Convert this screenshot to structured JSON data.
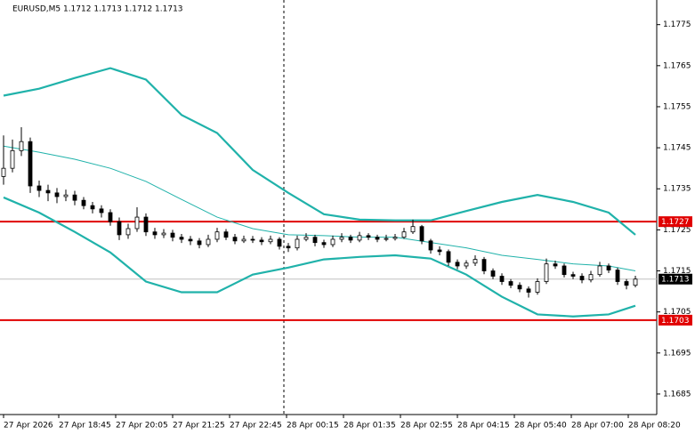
{
  "chart_data": {
    "type": "candlestick",
    "title": "EURUSD,M5  1.1712 1.1713 1.1712 1.1713",
    "xlim": [
      -0.4,
      73.4
    ],
    "ylim": [
      1.168,
      1.1781
    ],
    "yticks": [
      1.1685,
      1.1695,
      1.1705,
      1.1715,
      1.1725,
      1.1735,
      1.1745,
      1.1755,
      1.1765,
      1.1775
    ],
    "xticks": [
      {
        "value": 0,
        "label": "27 Apr 2026"
      },
      {
        "value": 6.2,
        "label": "27 Apr 18:45"
      },
      {
        "value": 12.6,
        "label": "27 Apr 20:05"
      },
      {
        "value": 19,
        "label": "27 Apr 21:25"
      },
      {
        "value": 25.4,
        "label": "27 Apr 22:45"
      },
      {
        "value": 31.8,
        "label": "28 Apr 00:15"
      },
      {
        "value": 38.2,
        "label": "28 Apr 01:35"
      },
      {
        "value": 44.6,
        "label": "28 Apr 02:55"
      },
      {
        "value": 51,
        "label": "28 Apr 04:15"
      },
      {
        "value": 57.4,
        "label": "28 Apr 05:40"
      },
      {
        "value": 63.8,
        "label": "28 Apr 07:00"
      },
      {
        "value": 70.2,
        "label": "28 Apr 08:20"
      }
    ],
    "candles": [
      [
        1.1738,
        1.1748,
        1.1736,
        1.174
      ],
      [
        1.174,
        1.1747,
        1.1739,
        1.17443
      ],
      [
        1.17443,
        1.175,
        1.1743,
        1.17465
      ],
      [
        1.17465,
        1.17475,
        1.1734,
        1.17357
      ],
      [
        1.17357,
        1.1737,
        1.1733,
        1.17346
      ],
      [
        1.17346,
        1.1736,
        1.1732,
        1.1734
      ],
      [
        1.1734,
        1.17352,
        1.17315,
        1.17331
      ],
      [
        1.17331,
        1.17348,
        1.1732,
        1.17335
      ],
      [
        1.17335,
        1.17345,
        1.1731,
        1.17322
      ],
      [
        1.17322,
        1.1733,
        1.173,
        1.17309
      ],
      [
        1.17309,
        1.17318,
        1.1729,
        1.17301
      ],
      [
        1.17301,
        1.1731,
        1.1728,
        1.17292
      ],
      [
        1.17292,
        1.173,
        1.1726,
        1.1727
      ],
      [
        1.1727,
        1.1728,
        1.17225,
        1.17238
      ],
      [
        1.17238,
        1.17265,
        1.17228,
        1.17253
      ],
      [
        1.17253,
        1.17305,
        1.17245,
        1.17281
      ],
      [
        1.17281,
        1.1729,
        1.17235,
        1.17245
      ],
      [
        1.17245,
        1.17255,
        1.17228,
        1.17238
      ],
      [
        1.17238,
        1.17252,
        1.1723,
        1.17242
      ],
      [
        1.17242,
        1.1725,
        1.17222,
        1.17232
      ],
      [
        1.17232,
        1.1724,
        1.17218,
        1.17227
      ],
      [
        1.17227,
        1.17235,
        1.17213,
        1.17223
      ],
      [
        1.17223,
        1.1723,
        1.17205,
        1.17214
      ],
      [
        1.17214,
        1.17238,
        1.17208,
        1.17227
      ],
      [
        1.17227,
        1.17255,
        1.1722,
        1.17245
      ],
      [
        1.17245,
        1.17252,
        1.17225,
        1.17232
      ],
      [
        1.17232,
        1.1724,
        1.17215,
        1.17223
      ],
      [
        1.17223,
        1.17236,
        1.17218,
        1.17227
      ],
      [
        1.17227,
        1.17235,
        1.17218,
        1.17225
      ],
      [
        1.17225,
        1.17232,
        1.17213,
        1.17221
      ],
      [
        1.17221,
        1.17236,
        1.17215,
        1.17227
      ],
      [
        1.17227,
        1.17232,
        1.17202,
        1.1721
      ],
      [
        1.1721,
        1.17218,
        1.17196,
        1.17206
      ],
      [
        1.17206,
        1.17236,
        1.172,
        1.17227
      ],
      [
        1.17227,
        1.17242,
        1.17222,
        1.17232
      ],
      [
        1.17232,
        1.17238,
        1.1721,
        1.17219
      ],
      [
        1.17219,
        1.17226,
        1.17206,
        1.17214
      ],
      [
        1.17214,
        1.17236,
        1.17208,
        1.17227
      ],
      [
        1.17227,
        1.17242,
        1.1722,
        1.17232
      ],
      [
        1.17232,
        1.17238,
        1.17218,
        1.17225
      ],
      [
        1.17225,
        1.17245,
        1.1722,
        1.17236
      ],
      [
        1.17236,
        1.17242,
        1.17225,
        1.17232
      ],
      [
        1.17232,
        1.17238,
        1.1722,
        1.17227
      ],
      [
        1.17227,
        1.17238,
        1.17222,
        1.17229
      ],
      [
        1.17229,
        1.1724,
        1.17224,
        1.17232
      ],
      [
        1.17232,
        1.17255,
        1.17228,
        1.17245
      ],
      [
        1.17245,
        1.17275,
        1.1724,
        1.17258
      ],
      [
        1.17258,
        1.17262,
        1.17215,
        1.17223
      ],
      [
        1.17223,
        1.17228,
        1.17192,
        1.17201
      ],
      [
        1.17201,
        1.1721,
        1.17188,
        1.17197
      ],
      [
        1.17197,
        1.17202,
        1.17162,
        1.17171
      ],
      [
        1.17171,
        1.17178,
        1.17154,
        1.17162
      ],
      [
        1.17162,
        1.17176,
        1.17155,
        1.17169
      ],
      [
        1.17169,
        1.17188,
        1.17162,
        1.17178
      ],
      [
        1.17178,
        1.17184,
        1.17142,
        1.1715
      ],
      [
        1.1715,
        1.17156,
        1.1713,
        1.17137
      ],
      [
        1.17137,
        1.17144,
        1.17116,
        1.17124
      ],
      [
        1.17124,
        1.1713,
        1.17108,
        1.17115
      ],
      [
        1.17115,
        1.17122,
        1.17098,
        1.17106
      ],
      [
        1.17106,
        1.17112,
        1.17085,
        1.17098
      ],
      [
        1.17098,
        1.17132,
        1.17092,
        1.17124
      ],
      [
        1.17124,
        1.1718,
        1.17118,
        1.17167
      ],
      [
        1.17167,
        1.17175,
        1.17155,
        1.17162
      ],
      [
        1.17162,
        1.17168,
        1.17134,
        1.17141
      ],
      [
        1.17141,
        1.17148,
        1.1713,
        1.17137
      ],
      [
        1.17137,
        1.17144,
        1.1712,
        1.17128
      ],
      [
        1.17128,
        1.1715,
        1.17122,
        1.17141
      ],
      [
        1.17141,
        1.17172,
        1.17136,
        1.17162
      ],
      [
        1.17162,
        1.17168,
        1.17145,
        1.17152
      ],
      [
        1.17152,
        1.17158,
        1.17116,
        1.17124
      ],
      [
        1.17124,
        1.1713,
        1.17105,
        1.17115
      ],
      [
        1.17115,
        1.17138,
        1.1711,
        1.1713
      ]
    ],
    "bands": [
      {
        "color": "#20b2aa",
        "width": 2.2,
        "x": [
          0,
          4,
          8,
          12,
          16,
          20,
          24,
          28,
          32,
          36,
          40,
          44,
          48,
          52,
          56,
          60,
          64,
          68,
          71
        ],
        "values": [
          1.17577,
          1.17594,
          1.1762,
          1.17644,
          1.17616,
          1.1753,
          1.17486,
          1.17396,
          1.1734,
          1.17288,
          1.17275,
          1.17273,
          1.17273,
          1.17296,
          1.17318,
          1.17335,
          1.17318,
          1.17292,
          1.17238
        ]
      },
      {
        "color": "#20b2aa",
        "width": 1,
        "x": [
          0,
          4,
          8,
          12,
          16,
          20,
          24,
          28,
          32,
          36,
          40,
          44,
          48,
          52,
          56,
          60,
          64,
          68,
          71
        ],
        "values": [
          1.17454,
          1.17439,
          1.17422,
          1.174,
          1.17368,
          1.17324,
          1.17281,
          1.17253,
          1.17238,
          1.17236,
          1.17232,
          1.17232,
          1.17219,
          1.17206,
          1.17188,
          1.17178,
          1.17167,
          1.17162,
          1.1715
        ]
      },
      {
        "color": "#20b2aa",
        "width": 2.2,
        "x": [
          0,
          4,
          8,
          12,
          16,
          20,
          24,
          28,
          32,
          36,
          40,
          44,
          48,
          52,
          56,
          60,
          64,
          68,
          71
        ],
        "values": [
          1.17329,
          1.17292,
          1.17245,
          1.17195,
          1.17124,
          1.17098,
          1.17098,
          1.17141,
          1.17158,
          1.17178,
          1.17184,
          1.17188,
          1.1718,
          1.17141,
          1.17087,
          1.17044,
          1.17039,
          1.17044,
          1.17065
        ]
      }
    ],
    "levels": [
      {
        "value": 1.1727,
        "color": "#e00000"
      },
      {
        "value": 1.1703,
        "color": "#e00000"
      }
    ],
    "current": {
      "value": 1.1713,
      "color": "#c0c0c0"
    }
  }
}
